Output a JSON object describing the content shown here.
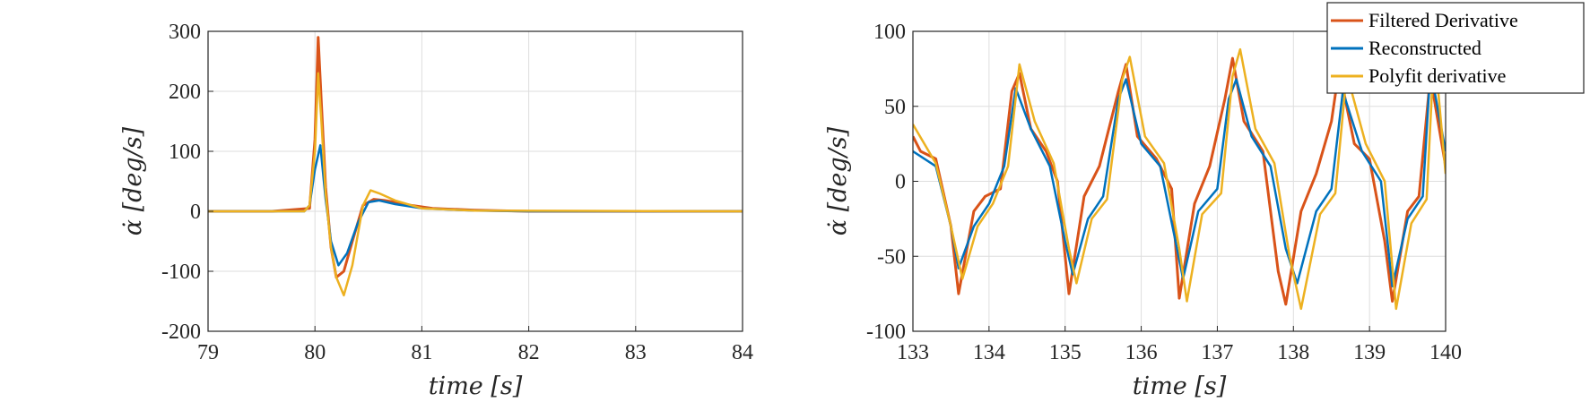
{
  "chart_data": [
    {
      "type": "line",
      "xlabel": "time [s]",
      "ylabel": "α̇ [deg/s]",
      "xlim": [
        79,
        84
      ],
      "ylim": [
        -200,
        300
      ],
      "xticks": [
        79,
        80,
        81,
        82,
        83,
        84
      ],
      "yticks": [
        -200,
        -100,
        0,
        100,
        200,
        300
      ],
      "grid": true,
      "series": [
        {
          "name": "Filtered Derivative",
          "color": "#D95319",
          "x": [
            79.0,
            79.3,
            79.6,
            79.95,
            80.0,
            80.03,
            80.06,
            80.1,
            80.15,
            80.2,
            80.27,
            80.35,
            80.45,
            80.55,
            80.65,
            80.75,
            80.9,
            81.1,
            81.5,
            82.0,
            82.5,
            83.0,
            83.5,
            84.0
          ],
          "y": [
            0,
            0,
            0,
            5,
            120,
            290,
            180,
            40,
            -60,
            -110,
            -100,
            -50,
            10,
            20,
            18,
            15,
            10,
            5,
            2,
            0,
            0,
            0,
            0,
            0
          ]
        },
        {
          "name": "Reconstructed",
          "color": "#0072BD",
          "x": [
            79.0,
            79.5,
            79.9,
            79.95,
            80.0,
            80.05,
            80.1,
            80.15,
            80.22,
            80.3,
            80.4,
            80.5,
            80.6,
            80.75,
            81.0,
            81.5,
            82.0,
            84.0
          ],
          "y": [
            0,
            0,
            0,
            10,
            70,
            110,
            20,
            -50,
            -90,
            -70,
            -20,
            15,
            18,
            12,
            5,
            1,
            0,
            0
          ]
        },
        {
          "name": "Polyfit derivative",
          "color": "#EDB120",
          "x": [
            79.0,
            79.5,
            79.9,
            79.95,
            80.0,
            80.03,
            80.06,
            80.1,
            80.15,
            80.2,
            80.27,
            80.35,
            80.45,
            80.52,
            80.6,
            80.75,
            81.0,
            81.5,
            84.0
          ],
          "y": [
            0,
            0,
            0,
            10,
            100,
            230,
            150,
            30,
            -60,
            -110,
            -140,
            -90,
            10,
            35,
            30,
            18,
            5,
            1,
            0
          ]
        }
      ]
    },
    {
      "type": "line",
      "xlabel": "time [s]",
      "ylabel": "α̇ [deg/s]",
      "xlim": [
        133,
        140
      ],
      "ylim": [
        -100,
        100
      ],
      "xticks": [
        133,
        134,
        135,
        136,
        137,
        138,
        139,
        140
      ],
      "yticks": [
        -100,
        -50,
        0,
        50,
        100
      ],
      "grid": true,
      "legend": "top-right",
      "series": [
        {
          "name": "Filtered Derivative",
          "color": "#D95319",
          "x": [
            133.0,
            133.1,
            133.3,
            133.5,
            133.6,
            133.8,
            133.95,
            134.15,
            134.3,
            134.4,
            134.55,
            134.75,
            134.9,
            135.05,
            135.25,
            135.45,
            135.7,
            135.8,
            135.95,
            136.2,
            136.4,
            136.5,
            136.7,
            136.9,
            137.1,
            137.2,
            137.35,
            137.6,
            137.8,
            137.9,
            138.1,
            138.3,
            138.5,
            138.6,
            138.8,
            139.0,
            139.2,
            139.3,
            139.5,
            139.65,
            139.8,
            140.0
          ],
          "y": [
            30,
            20,
            15,
            -30,
            -75,
            -20,
            -10,
            -5,
            60,
            72,
            35,
            20,
            0,
            -75,
            -10,
            10,
            60,
            78,
            30,
            15,
            -5,
            -78,
            -15,
            10,
            55,
            82,
            40,
            20,
            -60,
            -82,
            -20,
            5,
            40,
            75,
            25,
            15,
            -40,
            -80,
            -20,
            -10,
            70,
            10
          ]
        },
        {
          "name": "Reconstructed",
          "color": "#0072BD",
          "x": [
            133.0,
            133.3,
            133.5,
            133.6,
            133.8,
            134.0,
            134.2,
            134.35,
            134.55,
            134.8,
            135.0,
            135.1,
            135.3,
            135.5,
            135.7,
            135.8,
            136.0,
            136.25,
            136.45,
            136.55,
            136.75,
            137.0,
            137.15,
            137.25,
            137.45,
            137.7,
            137.9,
            138.05,
            138.3,
            138.5,
            138.65,
            138.9,
            139.15,
            139.3,
            139.5,
            139.7,
            139.8,
            140.0
          ],
          "y": [
            20,
            10,
            -30,
            -58,
            -30,
            -15,
            10,
            62,
            35,
            10,
            -40,
            -62,
            -25,
            -10,
            55,
            68,
            25,
            10,
            -40,
            -65,
            -20,
            -5,
            55,
            68,
            30,
            10,
            -45,
            -68,
            -20,
            -5,
            60,
            20,
            0,
            -70,
            -25,
            -10,
            75,
            20
          ]
        },
        {
          "name": "Polyfit derivative",
          "color": "#EDB120",
          "x": [
            133.0,
            133.3,
            133.5,
            133.65,
            133.85,
            134.05,
            134.25,
            134.4,
            134.6,
            134.85,
            135.05,
            135.15,
            135.35,
            135.55,
            135.75,
            135.85,
            136.05,
            136.3,
            136.5,
            136.6,
            136.8,
            137.05,
            137.2,
            137.3,
            137.5,
            137.75,
            137.95,
            138.1,
            138.35,
            138.55,
            138.7,
            138.95,
            139.2,
            139.35,
            139.55,
            139.75,
            139.85,
            140.0
          ],
          "y": [
            38,
            12,
            -30,
            -65,
            -30,
            -15,
            10,
            78,
            40,
            12,
            -45,
            -68,
            -25,
            -12,
            68,
            83,
            30,
            12,
            -45,
            -80,
            -22,
            -8,
            70,
            88,
            35,
            12,
            -50,
            -85,
            -22,
            -8,
            72,
            25,
            0,
            -85,
            -28,
            -12,
            90,
            5
          ]
        }
      ]
    }
  ]
}
